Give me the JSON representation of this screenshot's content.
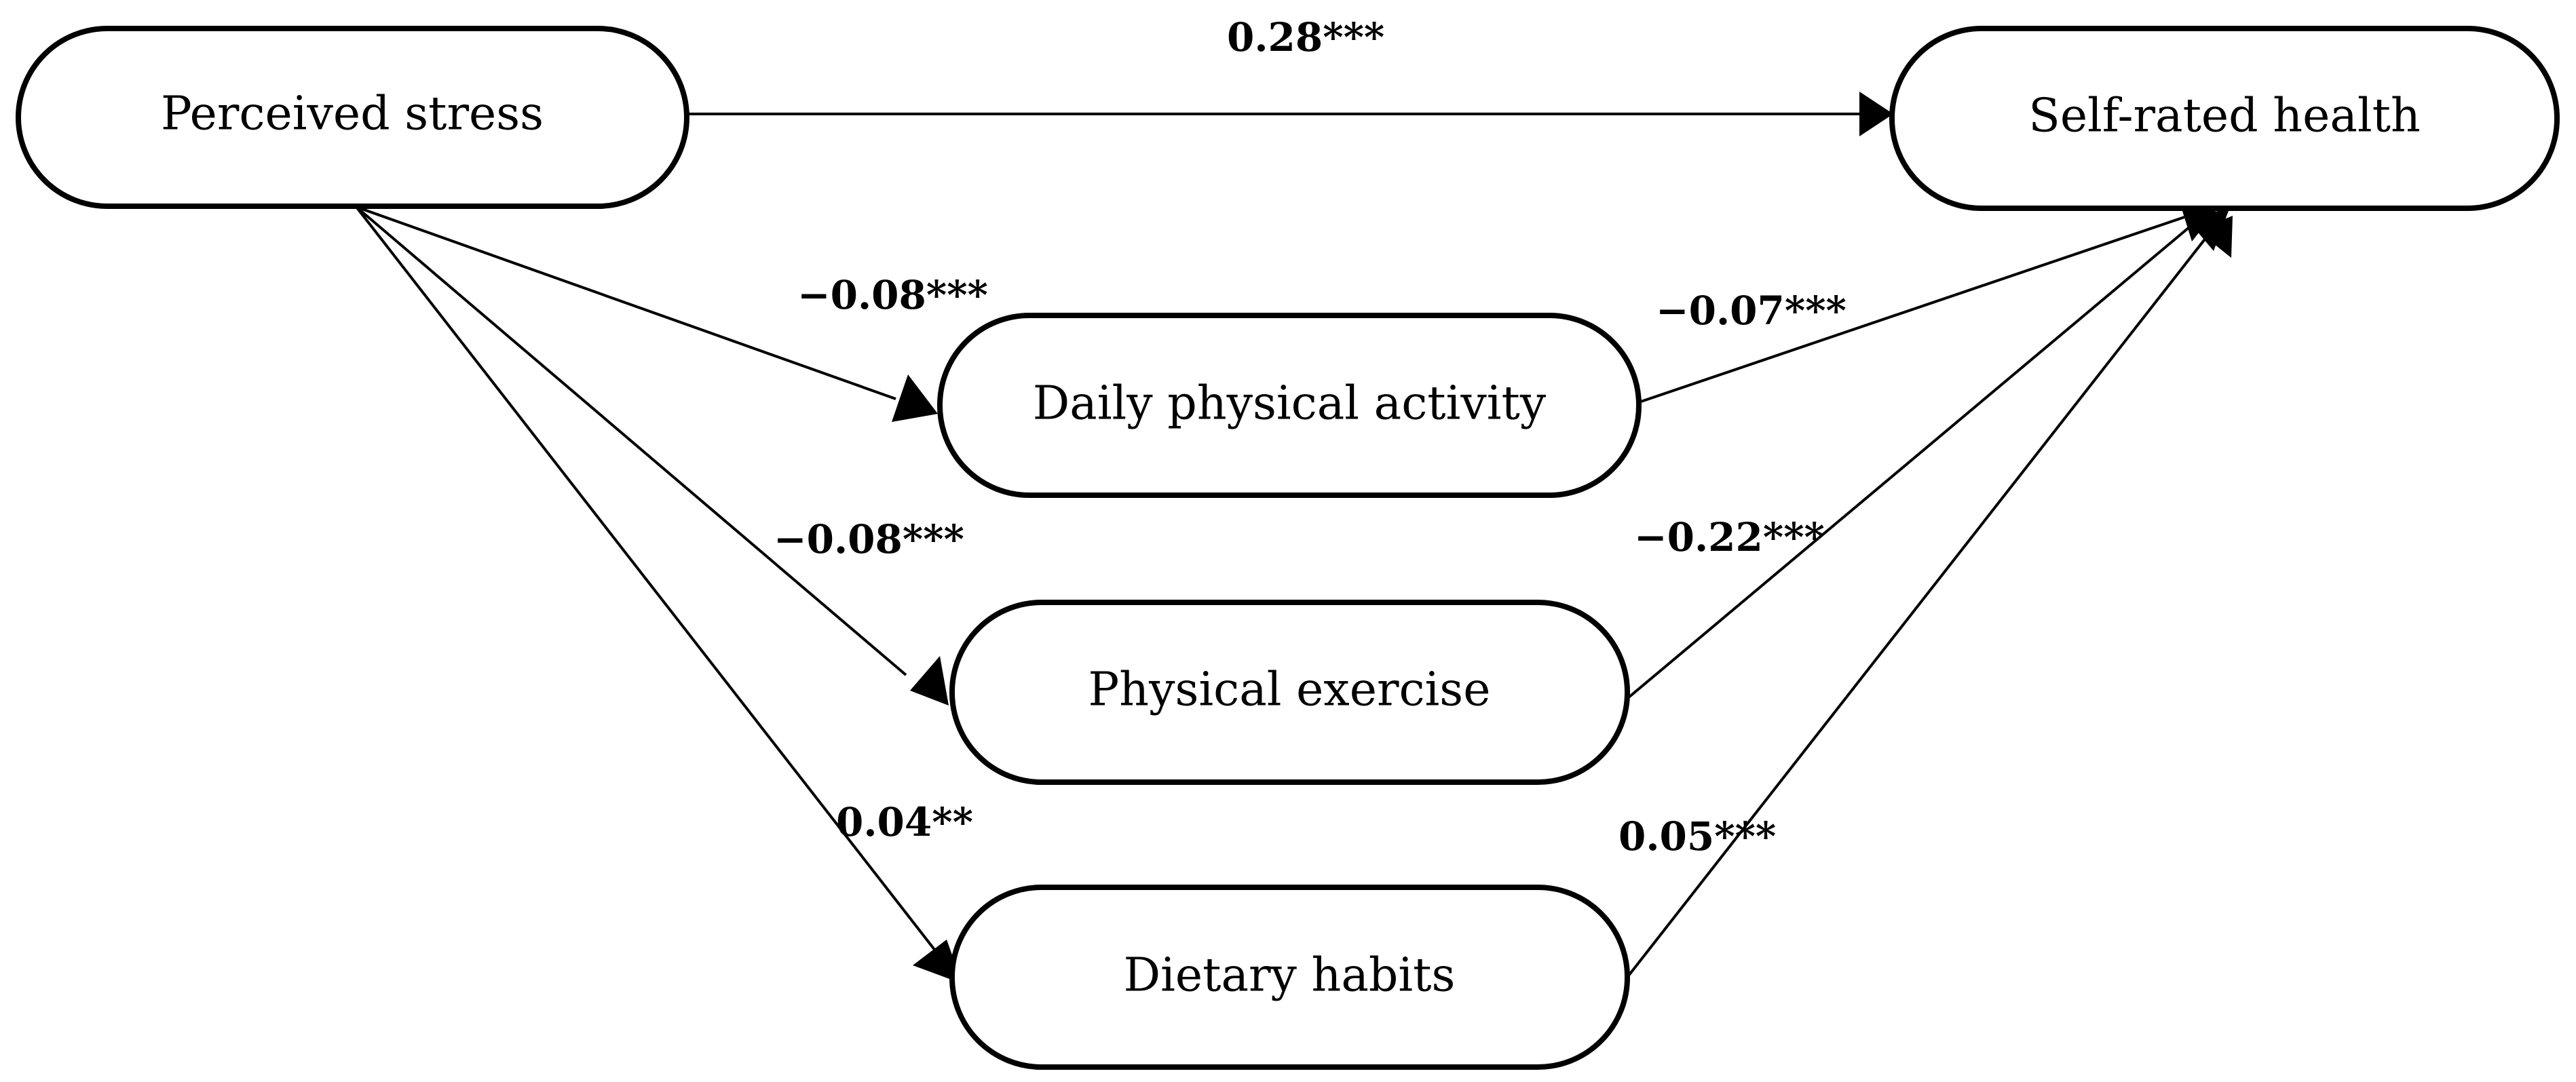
{
  "nodes": {
    "perceived_stress": "Perceived stress",
    "self_rated_health": "Self-rated health",
    "daily_physical_activity": "Daily physical activity",
    "physical_exercise": "Physical exercise",
    "dietary_habits": "Dietary habits"
  },
  "paths": {
    "stress_to_health": "0.28***",
    "stress_to_activity": "−0.08***",
    "stress_to_exercise": "−0.08***",
    "stress_to_diet": "0.04**",
    "activity_to_health": "−0.07***",
    "exercise_to_health": "−0.22***",
    "diet_to_health": "0.05***"
  }
}
